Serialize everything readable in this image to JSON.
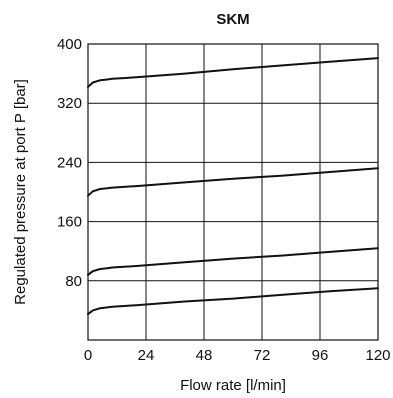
{
  "chart_data": {
    "type": "line",
    "title": "SKM",
    "xlabel": "Flow rate [l/min]",
    "ylabel": "Regulated pressure at port P [bar]",
    "xlim": [
      0,
      120
    ],
    "ylim": [
      0,
      400
    ],
    "x_ticks": [
      "0",
      "24",
      "48",
      "72",
      "96",
      "120"
    ],
    "y_ticks": [
      "80",
      "160",
      "240",
      "320",
      "400"
    ],
    "grid": true,
    "series": [
      {
        "x": [
          0,
          2,
          5,
          8,
          10,
          20,
          40,
          60,
          80,
          100,
          120
        ],
        "values": [
          35,
          40,
          43,
          44,
          45,
          47,
          52,
          56,
          61,
          66,
          70
        ]
      },
      {
        "x": [
          0,
          2,
          5,
          8,
          10,
          20,
          40,
          60,
          80,
          100,
          120
        ],
        "values": [
          88,
          93,
          96,
          97,
          98,
          100,
          105,
          110,
          114,
          119,
          124
        ]
      },
      {
        "x": [
          0,
          2,
          5,
          8,
          10,
          20,
          40,
          60,
          80,
          100,
          120
        ],
        "values": [
          195,
          201,
          204,
          205,
          206,
          208,
          213,
          218,
          222,
          227,
          232
        ]
      },
      {
        "x": [
          0,
          2,
          5,
          8,
          10,
          20,
          40,
          60,
          80,
          100,
          120
        ],
        "values": [
          342,
          348,
          351,
          352,
          353,
          355,
          360,
          366,
          371,
          376,
          381
        ]
      }
    ]
  }
}
